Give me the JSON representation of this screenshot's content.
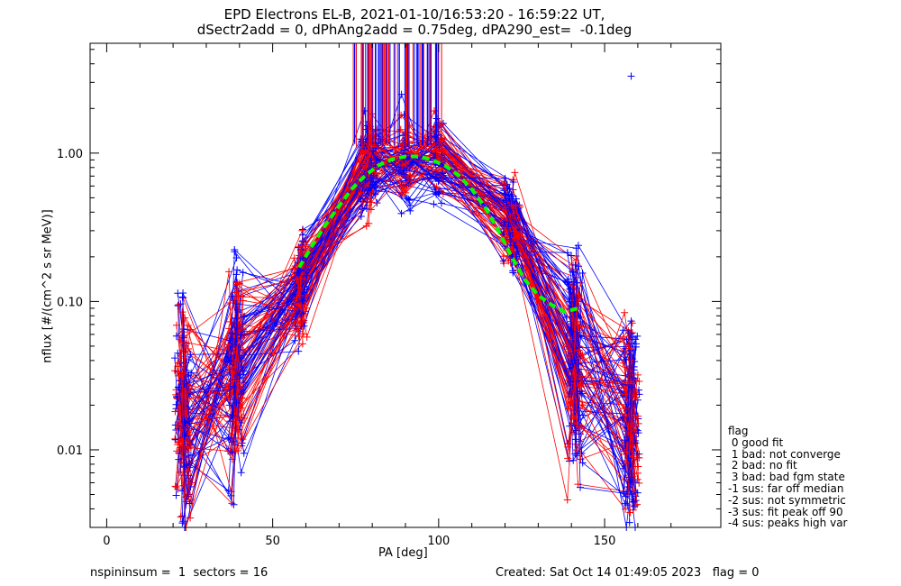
{
  "title_line1": "EPD Electrons EL-B, 2021-01-10/16:53:20 - 16:59:22 UT,",
  "title_line2": "dSectr2add = 0, dPhAng2add = 0.75deg, dPA290_est=  -0.1deg",
  "footer_left": "nspininsum =  1  sectors = 16",
  "footer_right": "Created: Sat Oct 14 01:49:05 2023   flag = 0",
  "legend": {
    "title": "flag",
    "items": [
      " 0 good fit",
      " 1 bad: not converge",
      " 2 bad: no fit",
      " 3 bad: bad fgm state",
      "-1 sus: far off median",
      "-2 sus: not symmetric",
      "-3 sus: fit peak off 90",
      "-4 sus: peaks high var"
    ]
  },
  "chart_data": {
    "type": "line",
    "xlabel": "PA [deg]",
    "ylabel": "nflux [#/(cm^2 s sr MeV)]",
    "xlim": [
      -5,
      185
    ],
    "ylim": [
      0.003,
      5.5
    ],
    "yscale": "log",
    "xticks": [
      0,
      50,
      100,
      150
    ],
    "yticks": [
      0.01,
      0.1,
      1.0
    ],
    "ytick_labels": [
      "0.01",
      "0.10",
      "1.00"
    ],
    "colors": {
      "spin_a": "#0000ff",
      "spin_b": "#ff0000",
      "fit": "#00ff00"
    },
    "representative_spectra": {
      "pa": [
        22,
        24,
        38,
        40,
        58,
        59,
        78,
        80,
        90,
        100,
        121,
        123,
        140,
        142,
        157,
        159
      ],
      "median_nflux": [
        0.02,
        0.015,
        0.03,
        0.04,
        0.12,
        0.15,
        0.75,
        0.85,
        0.88,
        0.85,
        0.38,
        0.3,
        0.04,
        0.035,
        0.018,
        0.015
      ],
      "count": 100
    },
    "fit_curve": {
      "pa": [
        58,
        62,
        66,
        70,
        74,
        78,
        82,
        86,
        90,
        94,
        98,
        102,
        106,
        110,
        114,
        118,
        122,
        126,
        130,
        134,
        138,
        142
      ],
      "nflux": [
        0.17,
        0.24,
        0.33,
        0.44,
        0.58,
        0.71,
        0.83,
        0.91,
        0.95,
        0.95,
        0.9,
        0.82,
        0.71,
        0.57,
        0.43,
        0.3,
        0.2,
        0.14,
        0.11,
        0.095,
        0.085,
        0.09
      ]
    },
    "outlier": {
      "pa": 158,
      "nflux": 3.3
    }
  }
}
